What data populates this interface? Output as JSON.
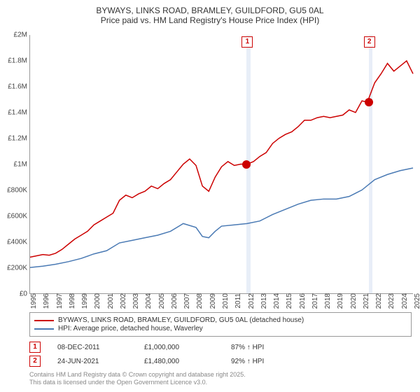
{
  "title_line1": "BYWAYS, LINKS ROAD, BRAMLEY, GUILDFORD, GU5 0AL",
  "title_line2": "Price paid vs. HM Land Registry's House Price Index (HPI)",
  "chart": {
    "type": "line",
    "ylim": [
      0,
      2000000
    ],
    "ytick_step": 200000,
    "yticks": [
      "£0",
      "£200K",
      "£400K",
      "£600K",
      "£800K",
      "£1M",
      "£1.2M",
      "£1.4M",
      "£1.6M",
      "£1.8M",
      "£2M"
    ],
    "xlim": [
      1995,
      2025
    ],
    "xticks": [
      1995,
      1996,
      1997,
      1998,
      1999,
      2000,
      2001,
      2002,
      2003,
      2004,
      2005,
      2006,
      2007,
      2008,
      2009,
      2010,
      2011,
      2012,
      2013,
      2014,
      2015,
      2016,
      2017,
      2018,
      2019,
      2020,
      2021,
      2022,
      2023,
      2024,
      2025
    ],
    "background_color": "#ffffff",
    "grid_color": "#e8e8e8",
    "colors": {
      "price_paid": "#cc0000",
      "hpi": "#4a7ab4",
      "shade": "#e8eef8"
    },
    "line_width": 1.5,
    "shade_regions": [
      {
        "start": 2011.94,
        "width": 0.3
      },
      {
        "start": 2021.48,
        "width": 0.3
      }
    ],
    "markers_on_plot": [
      {
        "label": "1",
        "x": 2011.94,
        "at_top": true
      },
      {
        "label": "2",
        "x": 2021.48,
        "at_top": true
      }
    ],
    "data_dots": [
      {
        "x": 2011.94,
        "y": 1000000
      },
      {
        "x": 2021.48,
        "y": 1480000
      }
    ],
    "series": [
      {
        "name": "price_paid",
        "label": "BYWAYS, LINKS ROAD, BRAMLEY, GUILDFORD, GU5 0AL (detached house)",
        "color": "#cc0000",
        "points": [
          [
            1995,
            280000
          ],
          [
            1995.5,
            290000
          ],
          [
            1996,
            300000
          ],
          [
            1996.5,
            295000
          ],
          [
            1997,
            310000
          ],
          [
            1997.5,
            340000
          ],
          [
            1998,
            380000
          ],
          [
            1998.5,
            420000
          ],
          [
            1999,
            450000
          ],
          [
            1999.5,
            480000
          ],
          [
            2000,
            530000
          ],
          [
            2000.5,
            560000
          ],
          [
            2001,
            590000
          ],
          [
            2001.5,
            620000
          ],
          [
            2002,
            720000
          ],
          [
            2002.5,
            760000
          ],
          [
            2003,
            740000
          ],
          [
            2003.5,
            770000
          ],
          [
            2004,
            790000
          ],
          [
            2004.5,
            830000
          ],
          [
            2005,
            810000
          ],
          [
            2005.5,
            850000
          ],
          [
            2006,
            880000
          ],
          [
            2006.5,
            940000
          ],
          [
            2007,
            1000000
          ],
          [
            2007.5,
            1040000
          ],
          [
            2008,
            990000
          ],
          [
            2008.5,
            830000
          ],
          [
            2009,
            790000
          ],
          [
            2009.5,
            900000
          ],
          [
            2010,
            980000
          ],
          [
            2010.5,
            1020000
          ],
          [
            2011,
            990000
          ],
          [
            2011.5,
            1000000
          ],
          [
            2011.94,
            1000000
          ],
          [
            2012,
            1000000
          ],
          [
            2012.5,
            1020000
          ],
          [
            2013,
            1060000
          ],
          [
            2013.5,
            1090000
          ],
          [
            2014,
            1160000
          ],
          [
            2014.5,
            1200000
          ],
          [
            2015,
            1230000
          ],
          [
            2015.5,
            1250000
          ],
          [
            2016,
            1290000
          ],
          [
            2016.5,
            1340000
          ],
          [
            2017,
            1340000
          ],
          [
            2017.5,
            1360000
          ],
          [
            2018,
            1370000
          ],
          [
            2018.5,
            1360000
          ],
          [
            2019,
            1370000
          ],
          [
            2019.5,
            1380000
          ],
          [
            2020,
            1420000
          ],
          [
            2020.5,
            1400000
          ],
          [
            2021,
            1490000
          ],
          [
            2021.48,
            1480000
          ],
          [
            2021.5,
            1500000
          ],
          [
            2022,
            1630000
          ],
          [
            2022.5,
            1700000
          ],
          [
            2023,
            1780000
          ],
          [
            2023.5,
            1720000
          ],
          [
            2024,
            1760000
          ],
          [
            2024.5,
            1800000
          ],
          [
            2025,
            1700000
          ]
        ]
      },
      {
        "name": "hpi",
        "label": "HPI: Average price, detached house, Waverley",
        "color": "#4a7ab4",
        "points": [
          [
            1995,
            200000
          ],
          [
            1996,
            210000
          ],
          [
            1997,
            225000
          ],
          [
            1998,
            245000
          ],
          [
            1999,
            270000
          ],
          [
            2000,
            305000
          ],
          [
            2001,
            330000
          ],
          [
            2002,
            390000
          ],
          [
            2003,
            410000
          ],
          [
            2004,
            430000
          ],
          [
            2005,
            450000
          ],
          [
            2006,
            480000
          ],
          [
            2007,
            540000
          ],
          [
            2008,
            510000
          ],
          [
            2008.5,
            440000
          ],
          [
            2009,
            430000
          ],
          [
            2009.5,
            480000
          ],
          [
            2010,
            520000
          ],
          [
            2011,
            530000
          ],
          [
            2012,
            540000
          ],
          [
            2013,
            560000
          ],
          [
            2014,
            610000
          ],
          [
            2015,
            650000
          ],
          [
            2016,
            690000
          ],
          [
            2017,
            720000
          ],
          [
            2018,
            730000
          ],
          [
            2019,
            730000
          ],
          [
            2020,
            750000
          ],
          [
            2021,
            800000
          ],
          [
            2022,
            880000
          ],
          [
            2023,
            920000
          ],
          [
            2024,
            950000
          ],
          [
            2025,
            970000
          ]
        ]
      }
    ]
  },
  "legend": [
    {
      "color": "#cc0000",
      "label": "BYWAYS, LINKS ROAD, BRAMLEY, GUILDFORD, GU5 0AL (detached house)"
    },
    {
      "color": "#4a7ab4",
      "label": "HPI: Average price, detached house, Waverley"
    }
  ],
  "points_table": [
    {
      "marker": "1",
      "date": "08-DEC-2011",
      "price": "£1,000,000",
      "vs_hpi": "87% ↑ HPI"
    },
    {
      "marker": "2",
      "date": "24-JUN-2021",
      "price": "£1,480,000",
      "vs_hpi": "92% ↑ HPI"
    }
  ],
  "footer_line1": "Contains HM Land Registry data © Crown copyright and database right 2025.",
  "footer_line2": "This data is licensed under the Open Government Licence v3.0."
}
